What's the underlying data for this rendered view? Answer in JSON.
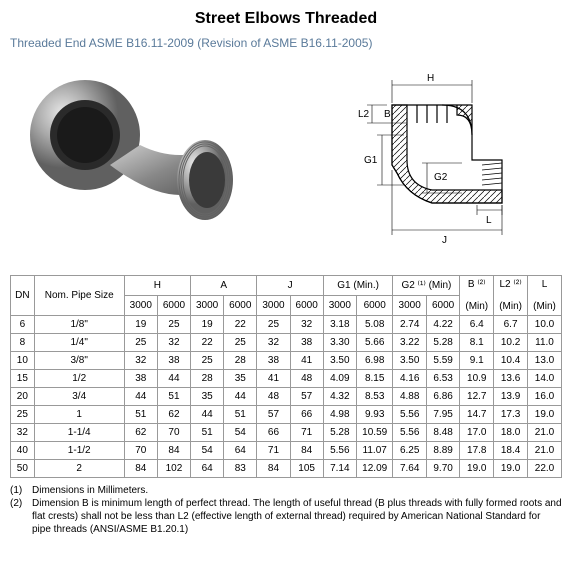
{
  "title": "Street Elbows Threaded",
  "subtitle": "Threaded End ASME B16.11-2009 (Revision of ASME B16.11-2005)",
  "diagram_labels": {
    "H": "H",
    "L2": "L2",
    "B": "B",
    "G1": "G1",
    "G2": "G2",
    "L": "L",
    "J": "J"
  },
  "columns": [
    {
      "label": "DN",
      "sub": null,
      "span": 1,
      "subcols": []
    },
    {
      "label": "Nom. Pipe Size",
      "sub": null,
      "span": 1,
      "subcols": []
    },
    {
      "label": "H",
      "sub": null,
      "span": 2,
      "subcols": [
        "3000",
        "6000"
      ]
    },
    {
      "label": "A",
      "sub": null,
      "span": 2,
      "subcols": [
        "3000",
        "6000"
      ]
    },
    {
      "label": "J",
      "sub": null,
      "span": 2,
      "subcols": [
        "3000",
        "6000"
      ]
    },
    {
      "label": "G1 (Min.)",
      "sub": null,
      "span": 2,
      "subcols": [
        "3000",
        "6000"
      ]
    },
    {
      "label": "G2 ⁽¹⁾ (Min)",
      "sub": null,
      "span": 2,
      "subcols": [
        "3000",
        "6000"
      ]
    },
    {
      "label": "B ⁽²⁾",
      "sub": "(Min)",
      "span": 1,
      "subcols": []
    },
    {
      "label": "L2 ⁽²⁾",
      "sub": "(Min)",
      "span": 1,
      "subcols": []
    },
    {
      "label": "L",
      "sub": "(Min)",
      "span": 1,
      "subcols": []
    }
  ],
  "rows": [
    [
      "6",
      "1/8\"",
      "19",
      "25",
      "19",
      "22",
      "25",
      "32",
      "3.18",
      "5.08",
      "2.74",
      "4.22",
      "6.4",
      "6.7",
      "10.0"
    ],
    [
      "8",
      "1/4\"",
      "25",
      "32",
      "22",
      "25",
      "32",
      "38",
      "3.30",
      "5.66",
      "3.22",
      "5.28",
      "8.1",
      "10.2",
      "11.0"
    ],
    [
      "10",
      "3/8\"",
      "32",
      "38",
      "25",
      "28",
      "38",
      "41",
      "3.50",
      "6.98",
      "3.50",
      "5.59",
      "9.1",
      "10.4",
      "13.0"
    ],
    [
      "15",
      "1/2",
      "38",
      "44",
      "28",
      "35",
      "41",
      "48",
      "4.09",
      "8.15",
      "4.16",
      "6.53",
      "10.9",
      "13.6",
      "14.0"
    ],
    [
      "20",
      "3/4",
      "44",
      "51",
      "35",
      "44",
      "48",
      "57",
      "4.32",
      "8.53",
      "4.88",
      "6.86",
      "12.7",
      "13.9",
      "16.0"
    ],
    [
      "25",
      "1",
      "51",
      "62",
      "44",
      "51",
      "57",
      "66",
      "4.98",
      "9.93",
      "5.56",
      "7.95",
      "14.7",
      "17.3",
      "19.0"
    ],
    [
      "32",
      "1-1/4",
      "62",
      "70",
      "51",
      "54",
      "66",
      "71",
      "5.28",
      "10.59",
      "5.56",
      "8.48",
      "17.0",
      "18.0",
      "21.0"
    ],
    [
      "40",
      "1-1/2",
      "70",
      "84",
      "54",
      "64",
      "71",
      "84",
      "5.56",
      "11.07",
      "6.25",
      "8.89",
      "17.8",
      "18.4",
      "21.0"
    ],
    [
      "50",
      "2",
      "84",
      "102",
      "64",
      "83",
      "84",
      "105",
      "7.14",
      "12.09",
      "7.64",
      "9.70",
      "19.0",
      "19.0",
      "22.0"
    ]
  ],
  "footnotes": [
    {
      "num": "(1)",
      "text": "Dimensions in Millimeters."
    },
    {
      "num": "(2)",
      "text": "Dimension B is minimum length of perfect thread.   The length of useful thread (B plus threads with fully formed roots and flat crests) shall not be less than L2 (effective length of external thread) required by American National Standard for pipe threads (ANSI/ASME B1.20.1)"
    }
  ]
}
